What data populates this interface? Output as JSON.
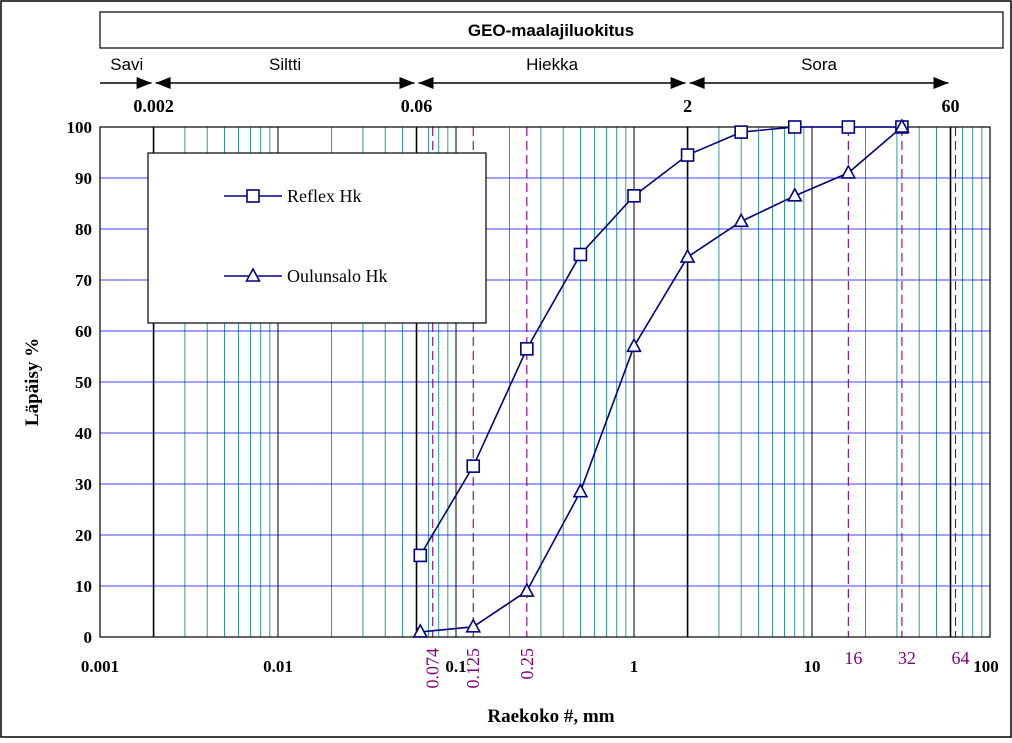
{
  "chart_data": {
    "type": "line",
    "title": "GEO-maalajiluokitus",
    "xlabel": "Raekoko #, mm",
    "ylabel": "Läpäisy %",
    "xscale": "log",
    "xlim": [
      0.001,
      100
    ],
    "ylim": [
      0,
      100
    ],
    "grid": true,
    "legend_position": "top-left",
    "x_tick_labels": [
      {
        "value": 0.001,
        "label": "0.001"
      },
      {
        "value": 0.01,
        "label": "0.01"
      },
      {
        "value": 0.1,
        "label": "0.1"
      },
      {
        "value": 1,
        "label": "1"
      },
      {
        "value": 10,
        "label": "10"
      },
      {
        "value": 100,
        "label": "100"
      }
    ],
    "y_tick_labels": [
      "0",
      "10",
      "20",
      "30",
      "40",
      "50",
      "60",
      "70",
      "80",
      "90",
      "100"
    ],
    "sieve_lines": [
      {
        "value": 0.074,
        "label": "0.074"
      },
      {
        "value": 0.125,
        "label": "0.125"
      },
      {
        "value": 0.25,
        "label": "0.25"
      },
      {
        "value": 16,
        "label": "16"
      },
      {
        "value": 32,
        "label": "32"
      },
      {
        "value": 64,
        "label": "64"
      }
    ],
    "classification": {
      "boundaries": [
        {
          "value": 0.002,
          "label": "0.002"
        },
        {
          "value": 0.06,
          "label": "0.06"
        },
        {
          "value": 2,
          "label": "2"
        },
        {
          "value": 60,
          "label": "60"
        }
      ],
      "classes": [
        {
          "name": "Savi",
          "from": 0.001,
          "to": 0.002
        },
        {
          "name": "Siltti",
          "from": 0.002,
          "to": 0.06
        },
        {
          "name": "Hiekka",
          "from": 0.06,
          "to": 2
        },
        {
          "name": "Sora",
          "from": 2,
          "to": 60
        }
      ]
    },
    "series": [
      {
        "name": "Reflex Hk",
        "marker": "square",
        "x": [
          0.063,
          0.125,
          0.25,
          0.5,
          1,
          2,
          4,
          8,
          16,
          32
        ],
        "y": [
          16,
          33.5,
          56.5,
          75,
          86.5,
          94.5,
          99,
          100,
          100,
          100
        ]
      },
      {
        "name": "Oulunsalo Hk",
        "marker": "triangle",
        "x": [
          0.063,
          0.125,
          0.25,
          0.5,
          1,
          2,
          4,
          8,
          16,
          32
        ],
        "y": [
          1,
          2,
          9,
          28.5,
          57,
          74.5,
          81.5,
          86.5,
          91,
          100
        ]
      }
    ],
    "colors": {
      "series": "#000080",
      "grid_minor": "#008080",
      "grid_major": "#000000",
      "grid_horizontal": "#0000ff",
      "sieve": "#800080",
      "frame": "#000000"
    }
  }
}
